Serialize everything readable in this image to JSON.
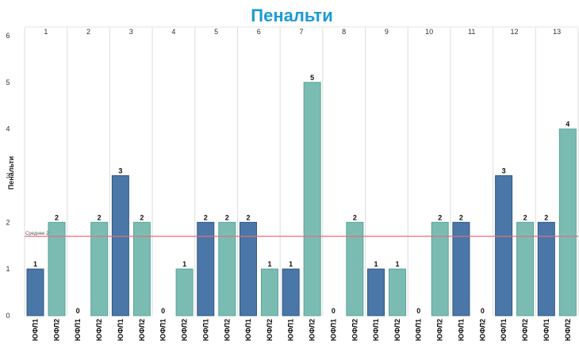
{
  "chart_data": {
    "type": "bar",
    "title": "Пенальти",
    "ylabel": "Пенальти",
    "ylim": [
      0,
      6
    ],
    "yticks": [
      0,
      1,
      2,
      3,
      4,
      5,
      6
    ],
    "groups": [
      "1",
      "2",
      "3",
      "4",
      "5",
      "6",
      "7",
      "8",
      "9",
      "10",
      "11",
      "12",
      "13"
    ],
    "categories": [
      "ЮФЛ1",
      "ЮФЛ2"
    ],
    "values": [
      [
        1,
        2
      ],
      [
        0,
        2
      ],
      [
        3,
        2
      ],
      [
        0,
        1
      ],
      [
        2,
        2
      ],
      [
        2,
        1
      ],
      [
        1,
        5
      ],
      [
        0,
        2
      ],
      [
        1,
        1
      ],
      [
        0,
        2
      ],
      [
        2,
        0
      ],
      [
        3,
        2
      ],
      [
        2,
        4
      ]
    ],
    "average": {
      "label": "Среднее 2",
      "value": 1.7,
      "color": "#e0707a"
    },
    "colors": {
      "ЮФЛ1": "#4a77a8",
      "ЮФЛ2": "#7bbcb2",
      "title": "#1a9ad6"
    },
    "grid": {
      "vertical_group_separators": true,
      "horizontal": false
    },
    "legend": "none"
  }
}
